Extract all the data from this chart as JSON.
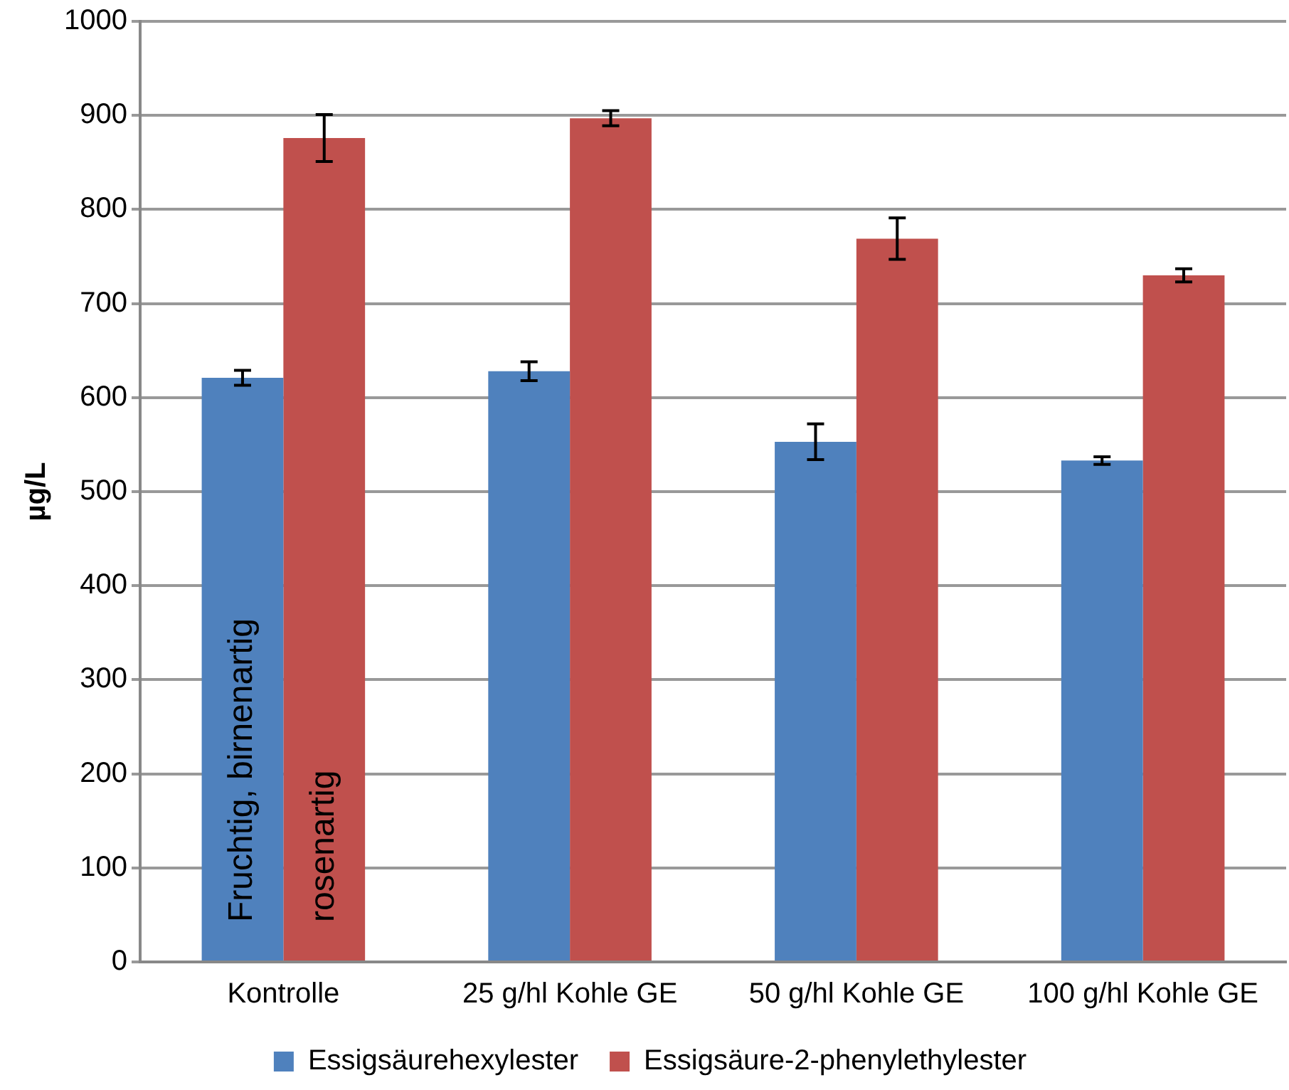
{
  "chart_data": {
    "type": "bar",
    "ylabel": "µg/L",
    "categories": [
      "Kontrolle",
      "25 g/hl Kohle GE",
      "50 g/hl Kohle GE",
      "100 g/hl Kohle GE"
    ],
    "series": [
      {
        "name": "Essigsäurehexylester",
        "color": "#4f81bd",
        "values": [
          621,
          628,
          553,
          533
        ],
        "errors": [
          8,
          10,
          19,
          4
        ]
      },
      {
        "name": "Essigsäure-2-phenylethylester",
        "color": "#c0504d",
        "values": [
          876,
          897,
          769,
          730
        ],
        "errors": [
          25,
          8,
          22,
          7
        ]
      }
    ],
    "annotations": [
      "Fruchtig, birnenartig",
      "rosenartig"
    ],
    "ylim": [
      0,
      1000
    ],
    "yticks": [
      0,
      100,
      200,
      300,
      400,
      500,
      600,
      700,
      800,
      900,
      1000
    ],
    "grid": "y",
    "legend": "bottom"
  }
}
